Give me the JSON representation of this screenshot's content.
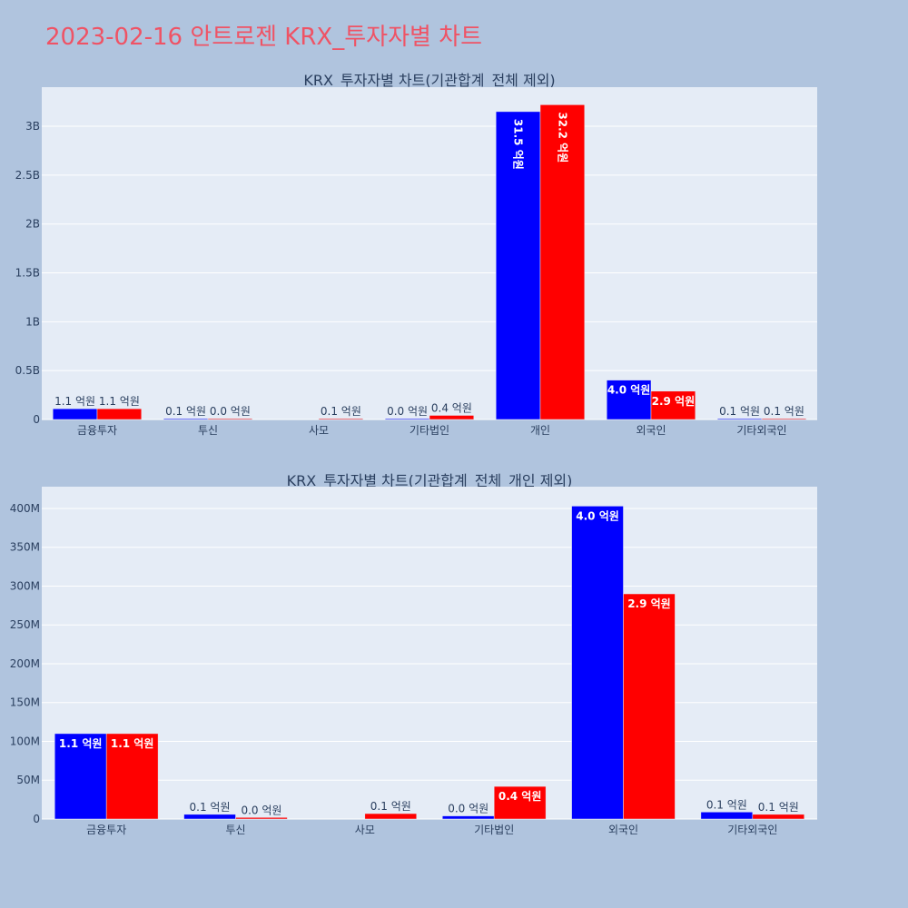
{
  "title": "2023-02-16 안트로젠 KRX_투자자별 차트",
  "colors": {
    "page_bg": "#b0c4de",
    "plot_bg": "#e5ecf6",
    "grid": "#ffffff",
    "title": "#ef5365",
    "text": "#2a3f5f",
    "series_a": "#0000ff",
    "series_b": "#ff0000"
  },
  "chart_data": [
    {
      "type": "bar",
      "title": "KRX_투자자별 차트(기관합계_전체 제외)",
      "categories": [
        "금융투자",
        "투신",
        "사모",
        "기타법인",
        "개인",
        "외국인",
        "기타외국인"
      ],
      "ylim": [
        0,
        3400000000
      ],
      "yticks": [
        0,
        500000000,
        1000000000,
        1500000000,
        2000000000,
        2500000000,
        3000000000
      ],
      "ytick_labels": [
        "0",
        "0.5B",
        "1B",
        "1.5B",
        "2B",
        "2.5B",
        "3B"
      ],
      "grid": true,
      "series": [
        {
          "color": "#0000ff",
          "values": [
            110000000,
            6000000,
            null,
            4000000,
            3150000000,
            403000000,
            9000000
          ],
          "labels": [
            "1.1 억원",
            "0.1 억원",
            null,
            "0.0 억원",
            "31.5 억원",
            "4.0 억원",
            "0.1 억원"
          ]
        },
        {
          "color": "#ff0000",
          "values": [
            110000000,
            2000000,
            7000000,
            42000000,
            3220000000,
            290000000,
            6000000
          ],
          "labels": [
            "1.1 억원",
            "0.0 억원",
            "0.1 억원",
            "0.4 억원",
            "32.2 억원",
            "2.9 억원",
            "0.1 억원"
          ]
        }
      ]
    },
    {
      "type": "bar",
      "title": "KRX_투자자별 차트(기관합계_전체_개인 제외)",
      "categories": [
        "금융투자",
        "투신",
        "사모",
        "기타법인",
        "외국인",
        "기타외국인"
      ],
      "ylim": [
        0,
        428000000
      ],
      "yticks": [
        0,
        50000000,
        100000000,
        150000000,
        200000000,
        250000000,
        300000000,
        350000000,
        400000000
      ],
      "ytick_labels": [
        "0",
        "50M",
        "100M",
        "150M",
        "200M",
        "250M",
        "300M",
        "350M",
        "400M"
      ],
      "grid": true,
      "series": [
        {
          "color": "#0000ff",
          "values": [
            110000000,
            6000000,
            null,
            4000000,
            403000000,
            9000000
          ],
          "labels": [
            "1.1 억원",
            "0.1 억원",
            null,
            "0.0 억원",
            "4.0 억원",
            "0.1 억원"
          ]
        },
        {
          "color": "#ff0000",
          "values": [
            110000000,
            2000000,
            7000000,
            42000000,
            290000000,
            6000000
          ],
          "labels": [
            "1.1 억원",
            "0.0 억원",
            "0.1 억원",
            "0.4 억원",
            "2.9 억원",
            "0.1 억원"
          ]
        }
      ]
    }
  ]
}
